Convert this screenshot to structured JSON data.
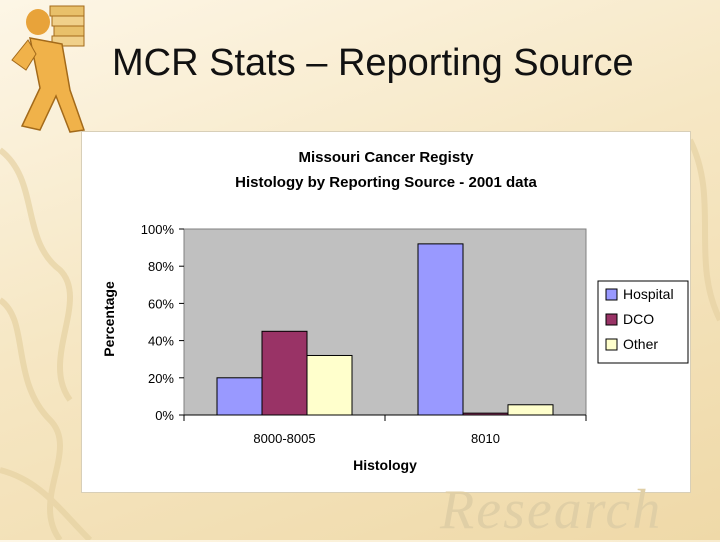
{
  "slide": {
    "title": "MCR Stats – Reporting Source",
    "watermark": "Research"
  },
  "colors": {
    "hospital": "#9999ff",
    "dco": "#993366",
    "other": "#ffffcc",
    "plot_bg": "#c0c0c0"
  },
  "chart_data": {
    "type": "bar",
    "title_lines": [
      "Missouri Cancer Registy",
      "Histology by Reporting Source - 2001 data"
    ],
    "xlabel": "Histology",
    "ylabel": "Percentage",
    "categories": [
      "8000-8005",
      "8010"
    ],
    "series": [
      {
        "name": "Hospital",
        "values": [
          20,
          92
        ],
        "color": "#9999ff"
      },
      {
        "name": "DCO",
        "values": [
          45,
          1
        ],
        "color": "#993366"
      },
      {
        "name": "Other",
        "values": [
          32,
          5.5
        ],
        "color": "#ffffcc"
      }
    ],
    "ylim": [
      0,
      100
    ],
    "yticks": [
      0,
      20,
      40,
      60,
      80,
      100
    ],
    "ytick_labels": [
      "0%",
      "20%",
      "40%",
      "60%",
      "80%",
      "100%"
    ],
    "grid": false,
    "legend_position": "right"
  }
}
